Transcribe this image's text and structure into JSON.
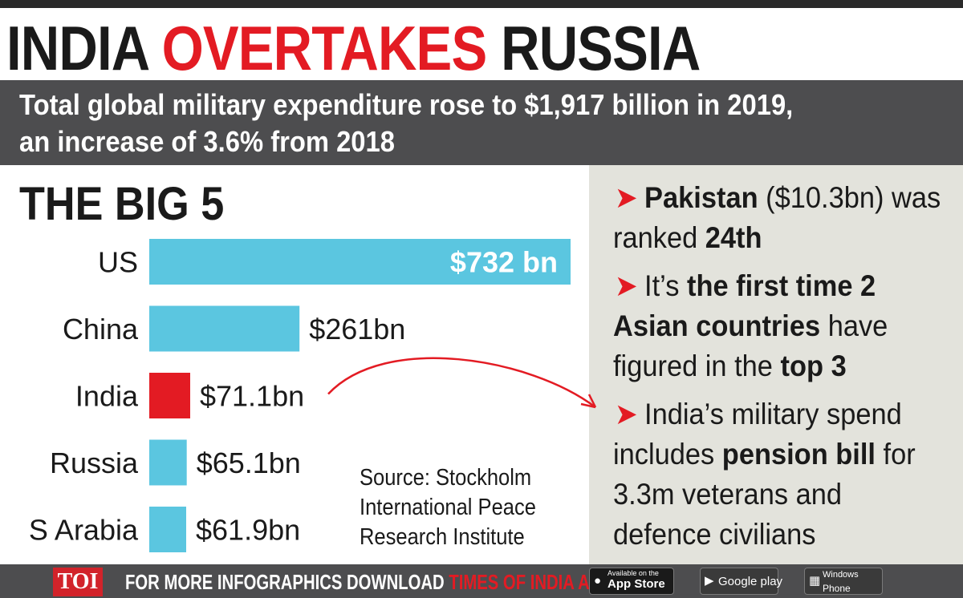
{
  "headline": {
    "part1": "INDIA ",
    "highlight": "OVERTAKES",
    "part2": " RUSSIA"
  },
  "subheadline": {
    "line1": "Total global military expenditure rose to $1,917 billion in 2019,",
    "line2": "an increase of 3.6% from 2018"
  },
  "section_title": "THE BIG 5",
  "chart_data": {
    "type": "bar",
    "orientation": "horizontal",
    "title": "THE BIG 5",
    "categories": [
      "US",
      "China",
      "India",
      "Russia",
      "S Arabia"
    ],
    "values": [
      732,
      261,
      71.1,
      65.1,
      61.9
    ],
    "unit": "bn USD",
    "data_labels": [
      "$732 bn",
      "$261bn",
      "$71.1bn",
      "$65.1bn",
      "$61.9bn"
    ],
    "highlight_category": "India",
    "colors": {
      "default": "#5bc6e0",
      "highlight": "#e31b23",
      "label_inside": "#ffffff",
      "label_outside": "#1a1a1a"
    },
    "grid": false,
    "legend": "none",
    "annotation": "arrow from India bar to right-panel note on India's military spend"
  },
  "source": {
    "line1": "Source: Stockholm",
    "line2": "International Peace",
    "line3": "Research Institute"
  },
  "notes": [
    {
      "segments": [
        {
          "text": "Pakistan",
          "bold": true
        },
        {
          "text": " ($10.3bn) was ranked ",
          "bold": false
        },
        {
          "text": "24th",
          "bold": true
        }
      ]
    },
    {
      "segments": [
        {
          "text": "It’s ",
          "bold": false
        },
        {
          "text": "the first time 2 Asian countries",
          "bold": true
        },
        {
          "text": " have figured in the ",
          "bold": false
        },
        {
          "text": "top 3",
          "bold": true
        }
      ]
    },
    {
      "segments": [
        {
          "text": "India’s military spend includes ",
          "bold": false
        },
        {
          "text": "pension bill",
          "bold": true
        },
        {
          "text": " for 3.3m veterans and defence civilians",
          "bold": false
        }
      ]
    }
  ],
  "bullet_glyph": "➤",
  "footer": {
    "logo": "TOI",
    "promo_text": "FOR MORE  INFOGRAPHICS DOWNLOAD ",
    "promo_app": "TIMES OF INDIA  APP",
    "app_store": {
      "small": "Available on the",
      "main": "App Store",
      "icon": "apple-icon"
    },
    "google_play": {
      "main": "Google play",
      "icon": "play-icon"
    },
    "windows_phone": {
      "small": "Windows",
      "main": "Phone",
      "icon": "windows-icon"
    }
  },
  "colors": {
    "accent_red": "#e31b23",
    "dark_band": "#4d4d4f",
    "panel_grey": "#e3e3dc",
    "bar_blue": "#5bc6e0"
  }
}
